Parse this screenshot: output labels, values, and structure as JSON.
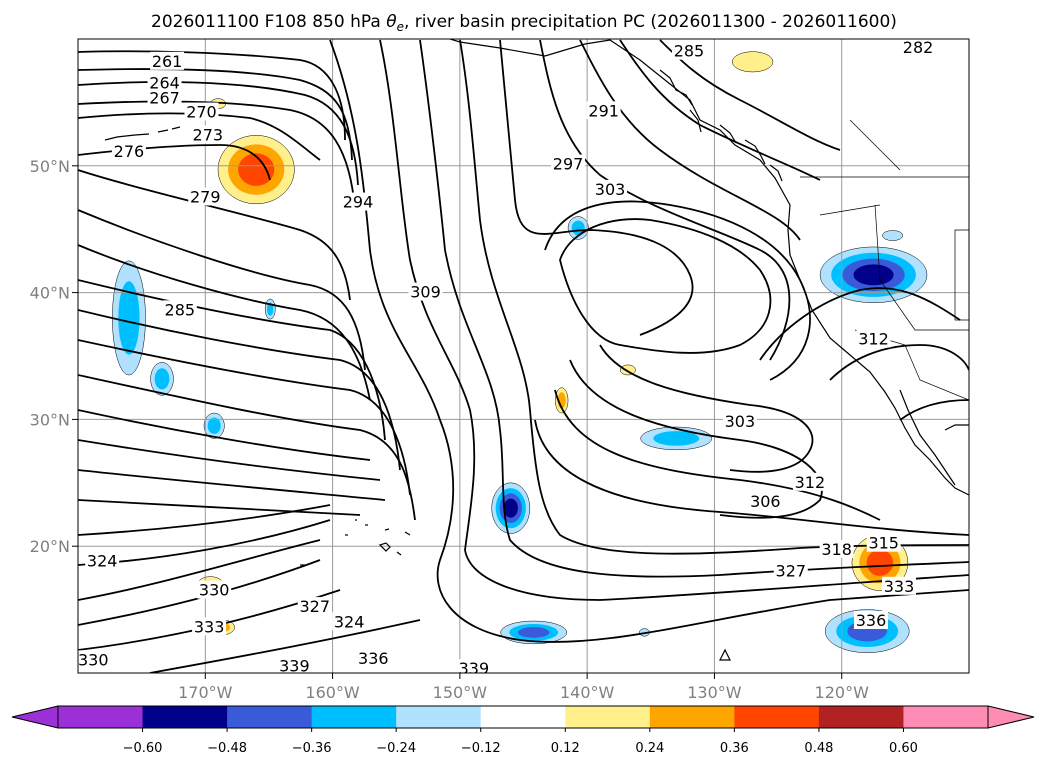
{
  "chart_data": {
    "type": "contour-map",
    "title_prefix": "2026011100 F108 850 hPa ",
    "title_symbol": "θ",
    "title_subscript": "e",
    "title_suffix": ", river basin precipitation PC (2026011300 - 2026011600)",
    "lon_ticks": [
      "170°W",
      "160°W",
      "150°W",
      "140°W",
      "130°W",
      "120°W"
    ],
    "lon_tick_values": [
      -170,
      -160,
      -150,
      -140,
      -130,
      -120
    ],
    "lat_ticks": [
      "20°N",
      "30°N",
      "40°N",
      "50°N"
    ],
    "lat_tick_values": [
      20,
      30,
      40,
      50
    ],
    "lon_range": [
      -180,
      -110
    ],
    "lat_range": [
      10,
      60
    ],
    "grid": true,
    "colorbar": {
      "position": "bottom",
      "extend": "both",
      "levels": [
        -0.72,
        -0.6,
        -0.48,
        -0.36,
        -0.24,
        -0.12,
        0.12,
        0.24,
        0.36,
        0.48,
        0.6,
        0.72
      ],
      "tick_labels": [
        "−0.60",
        "−0.48",
        "−0.36",
        "−0.24",
        "−0.12",
        "0.12",
        "0.24",
        "0.36",
        "0.48",
        "0.60"
      ],
      "tick_values": [
        -0.6,
        -0.48,
        -0.36,
        -0.24,
        -0.12,
        0.12,
        0.24,
        0.36,
        0.48,
        0.6
      ],
      "colors": [
        "#9b30d6",
        "#00008b",
        "#3a5bd9",
        "#00bfff",
        "#b0e2ff",
        "#ffffff",
        "#fff08c",
        "#ffa500",
        "#ff4500",
        "#b22222",
        "#ff8cb4"
      ],
      "under_color": "#9b30d6",
      "over_color": "#ff8cb4"
    },
    "theta_e_labels": [
      {
        "text": "261",
        "lon": -173,
        "lat": 58.2
      },
      {
        "text": "264",
        "lon": -173.2,
        "lat": 56.5
      },
      {
        "text": "267",
        "lon": -173.2,
        "lat": 55.3
      },
      {
        "text": "270",
        "lon": -170.3,
        "lat": 54.2
      },
      {
        "text": "273",
        "lon": -169.8,
        "lat": 52.4
      },
      {
        "text": "276",
        "lon": -176,
        "lat": 51.1
      },
      {
        "text": "279",
        "lon": -170,
        "lat": 47.5
      },
      {
        "text": "285",
        "lon": -172,
        "lat": 38.6
      },
      {
        "text": "294",
        "lon": -158,
        "lat": 47.1
      },
      {
        "text": "309",
        "lon": -152.7,
        "lat": 40.0
      },
      {
        "text": "297",
        "lon": -141.5,
        "lat": 50.1
      },
      {
        "text": "303",
        "lon": -138.2,
        "lat": 48.1
      },
      {
        "text": "291",
        "lon": -138.7,
        "lat": 54.3
      },
      {
        "text": "285",
        "lon": -132,
        "lat": 59.0
      },
      {
        "text": "282",
        "lon": -114,
        "lat": 59.3
      },
      {
        "text": "306",
        "lon": -126,
        "lat": 23.5
      },
      {
        "text": "303",
        "lon": -128,
        "lat": 29.8
      },
      {
        "text": "312",
        "lon": -122.5,
        "lat": 25.0
      },
      {
        "text": "315",
        "lon": -116.7,
        "lat": 20.2
      },
      {
        "text": "318",
        "lon": -120.4,
        "lat": 19.7
      },
      {
        "text": "327",
        "lon": -124,
        "lat": 18.0
      },
      {
        "text": "333",
        "lon": -115.5,
        "lat": 16.8
      },
      {
        "text": "336",
        "lon": -117.7,
        "lat": 14.1
      },
      {
        "text": "312",
        "lon": -117.5,
        "lat": 36.3
      },
      {
        "text": "330",
        "lon": -169.3,
        "lat": 16.5
      },
      {
        "text": "333",
        "lon": -169.7,
        "lat": 13.6
      },
      {
        "text": "327",
        "lon": -161.4,
        "lat": 15.2
      },
      {
        "text": "324",
        "lon": -158.7,
        "lat": 14.0
      },
      {
        "text": "324",
        "lon": -178.1,
        "lat": 18.8
      },
      {
        "text": "330",
        "lon": -178.8,
        "lat": 11.0
      },
      {
        "text": "339",
        "lon": -163,
        "lat": 10.5
      },
      {
        "text": "336",
        "lon": -156.8,
        "lat": 11.1
      },
      {
        "text": "339",
        "lon": -148.9,
        "lat": 10.3
      }
    ],
    "pc_anomalies": [
      {
        "lon": -166,
        "lat": 49.7,
        "value": 0.4,
        "rx": 3.0,
        "ry": 2.7
      },
      {
        "lon": -117,
        "lat": 18.7,
        "value": 0.42,
        "rx": 2.2,
        "ry": 2.2
      },
      {
        "lon": -142,
        "lat": 31.5,
        "value": 0.28,
        "rx": 0.5,
        "ry": 1.0
      },
      {
        "lon": -169.6,
        "lat": 17.0,
        "value": 0.2,
        "rx": 1.0,
        "ry": 0.6
      },
      {
        "lon": -168.7,
        "lat": 13.6,
        "value": 0.3,
        "rx": 1.0,
        "ry": 0.6
      },
      {
        "lon": -127,
        "lat": 58.2,
        "value": 0.22,
        "rx": 1.6,
        "ry": 0.8
      },
      {
        "lon": -114.5,
        "lat": 59.6,
        "value": 0.3,
        "rx": 0.8,
        "ry": 0.6
      },
      {
        "lon": -169,
        "lat": 54.9,
        "value": 0.2,
        "rx": 0.6,
        "ry": 0.4
      },
      {
        "lon": -136.8,
        "lat": 33.9,
        "value": 0.2,
        "rx": 0.6,
        "ry": 0.4
      },
      {
        "lon": -176,
        "lat": 38.0,
        "value": -0.26,
        "rx": 1.3,
        "ry": 4.5
      },
      {
        "lon": -173.4,
        "lat": 33.2,
        "value": -0.28,
        "rx": 0.9,
        "ry": 1.3
      },
      {
        "lon": -169.3,
        "lat": 29.5,
        "value": -0.32,
        "rx": 0.8,
        "ry": 1.0
      },
      {
        "lon": -164.9,
        "lat": 38.7,
        "value": -0.3,
        "rx": 0.4,
        "ry": 0.8
      },
      {
        "lon": -146,
        "lat": 23.0,
        "value": -0.55,
        "rx": 1.5,
        "ry": 2.0
      },
      {
        "lon": -144.2,
        "lat": 13.2,
        "value": -0.42,
        "rx": 2.6,
        "ry": 0.9
      },
      {
        "lon": -140.7,
        "lat": 45.1,
        "value": -0.3,
        "rx": 0.8,
        "ry": 0.9
      },
      {
        "lon": -133,
        "lat": 28.5,
        "value": -0.26,
        "rx": 2.8,
        "ry": 0.9
      },
      {
        "lon": -118,
        "lat": 13.3,
        "value": -0.45,
        "rx": 3.3,
        "ry": 1.7
      },
      {
        "lon": -117.5,
        "lat": 41.4,
        "value": -0.55,
        "rx": 4.2,
        "ry": 2.2
      },
      {
        "lon": -116,
        "lat": 44.5,
        "value": -0.22,
        "rx": 0.8,
        "ry": 0.4
      },
      {
        "lon": -135.5,
        "lat": 13.2,
        "value": -0.2,
        "rx": 0.4,
        "ry": 0.3
      }
    ]
  }
}
